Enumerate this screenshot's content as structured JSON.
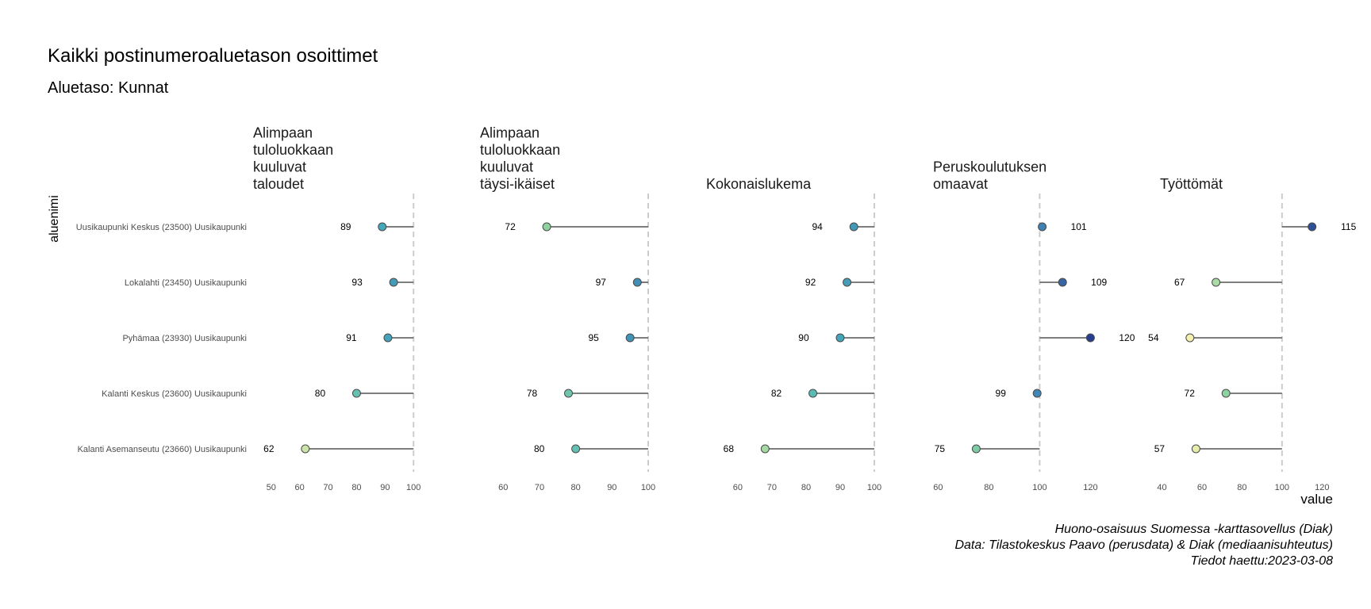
{
  "chart_data": {
    "type": "lollipop",
    "title": "Kaikki postinumeroaluetason osoittimet",
    "subtitle": "Aluetaso: Kunnat",
    "ylabel": "aluenimi",
    "xlabel": "value",
    "reference_line": 100,
    "grid": false,
    "categories": [
      "Uusikaupunki Keskus (23500) Uusikaupunki",
      "Lokalahti (23450) Uusikaupunki",
      "Pyhämaa (23930) Uusikaupunki",
      "Kalanti Keskus (23600) Uusikaupunki",
      "Kalanti Asemanseutu (23660) Uusikaupunki"
    ],
    "panels": [
      {
        "title": [
          "Alimpaan",
          "tuloluokkaan",
          "kuuluvat",
          "taloudet"
        ],
        "xlim": [
          47,
          103
        ],
        "ticks": [
          50,
          60,
          70,
          80,
          90,
          100
        ],
        "values": [
          89,
          93,
          91,
          80,
          62
        ],
        "labels": [
          "89",
          "93",
          "91",
          "80",
          "62"
        ]
      },
      {
        "title": [
          "Alimpaan",
          "tuloluokkaan",
          "kuuluvat",
          "täysi-ikäiset"
        ],
        "xlim": [
          56,
          100
        ],
        "ticks": [
          60,
          70,
          80,
          90,
          100
        ],
        "values": [
          72,
          97,
          95,
          78,
          80
        ],
        "labels": [
          "72",
          "97",
          "95",
          "78",
          "80"
        ]
      },
      {
        "title": [
          "Kokonaislukema"
        ],
        "xlim": [
          57,
          100
        ],
        "ticks": [
          60,
          70,
          80,
          90,
          100
        ],
        "values": [
          94,
          92,
          90,
          82,
          68
        ],
        "labels": [
          "94",
          "92",
          "90",
          "82",
          "68"
        ]
      },
      {
        "title": [
          "Peruskoulutuksen",
          "omaavat"
        ],
        "xlim": [
          58,
          128
        ],
        "ticks": [
          60,
          80,
          100,
          120
        ],
        "values": [
          101,
          109,
          120,
          99,
          75
        ],
        "labels": [
          "101",
          "109",
          "120",
          "99",
          "75"
        ]
      },
      {
        "title": [
          "Työttömät"
        ],
        "xlim": [
          39,
          129
        ],
        "ticks": [
          40,
          60,
          80,
          100,
          120
        ],
        "values": [
          115,
          67,
          54,
          72,
          57
        ],
        "labels": [
          "115",
          "67",
          "54",
          "72",
          "57"
        ]
      }
    ],
    "colors": {
      "line": "#6b6b6b",
      "reference": "#cccccc",
      "scale_low": "#f4f1b0",
      "scale_mid": "#46b2bd",
      "scale_high": "#273e8f"
    },
    "caption": [
      "Huono-osaisuus Suomessa -karttasovellus (Diak)",
      "Data: Tilastokeskus Paavo (perusdata) & Diak (mediaanisuhteutus)",
      "Tiedot haettu:2023-03-08"
    ]
  }
}
